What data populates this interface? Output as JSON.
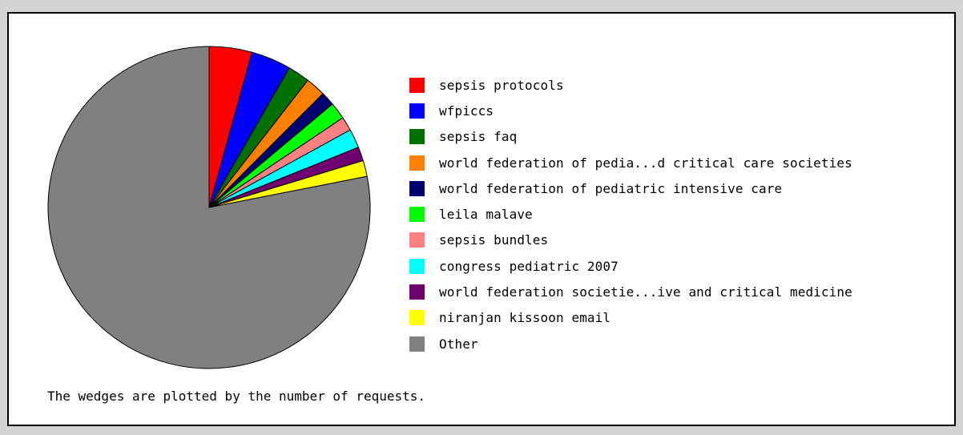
{
  "chart_data": {
    "type": "pie",
    "start_angle_deg": 90,
    "direction": "clockwise",
    "legend_position": "right",
    "slices": [
      {
        "label": "sepsis protocols",
        "value": 4.3,
        "color": "#ff0000"
      },
      {
        "label": "wfpiccs",
        "value": 4.0,
        "color": "#0000ff"
      },
      {
        "label": "sepsis faq",
        "value": 2.2,
        "color": "#007000"
      },
      {
        "label": "world federation of pedia...d critical care societies",
        "value": 2.0,
        "color": "#ff8000"
      },
      {
        "label": "world federation of pediatric intensive care",
        "value": 1.4,
        "color": "#000070"
      },
      {
        "label": "leila malave",
        "value": 1.7,
        "color": "#00ff00"
      },
      {
        "label": "sepsis bundles",
        "value": 1.4,
        "color": "#ff8080"
      },
      {
        "label": "congress pediatric 2007",
        "value": 1.9,
        "color": "#00ffff"
      },
      {
        "label": "world federation societie...ive and critical medicine",
        "value": 1.4,
        "color": "#700070"
      },
      {
        "label": "niranjan kissoon email",
        "value": 1.6,
        "color": "#ffff00"
      },
      {
        "label": "Other",
        "value": 78.1,
        "color": "#808080"
      }
    ]
  },
  "footnote": "The wedges are plotted by the number of requests."
}
